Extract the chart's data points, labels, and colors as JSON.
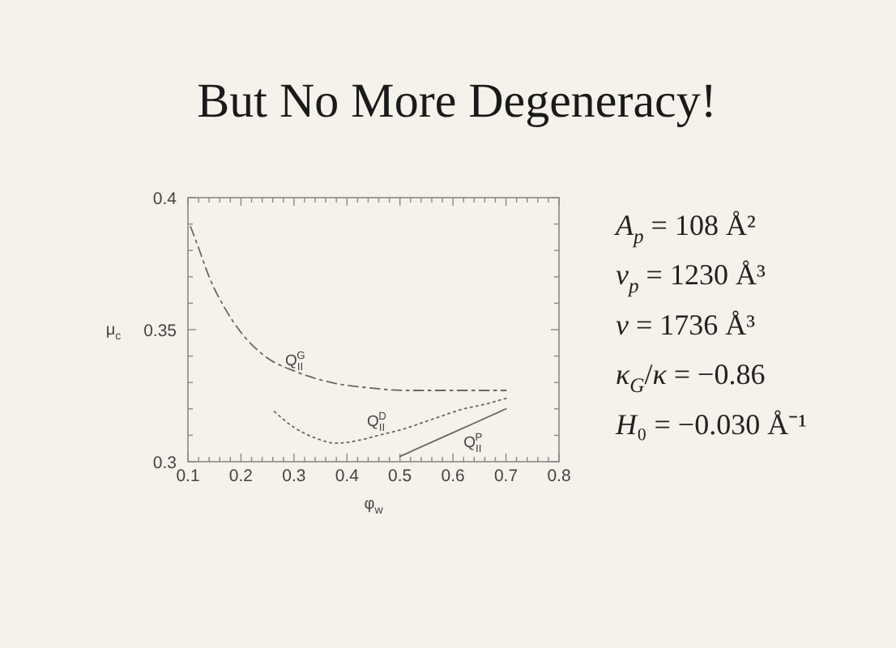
{
  "chart_data": {
    "type": "line",
    "title": "But No More Degeneracy!",
    "xlabel": "φ$_{w}$",
    "ylabel": "μ$_{c}$",
    "xlim": [
      0.1,
      0.8
    ],
    "ylim": [
      0.3,
      0.4
    ],
    "xticks": [
      0.1,
      {
        "value": 0.12,
        "label": null
      },
      {
        "value": 0.14,
        "label": null
      },
      {
        "value": 0.16,
        "label": null
      },
      {
        "value": 0.18,
        "label": null
      },
      0.2,
      {
        "value": 0.22,
        "label": null
      },
      {
        "value": 0.24,
        "label": null
      },
      {
        "value": 0.26,
        "label": null
      },
      {
        "value": 0.28,
        "label": null
      },
      0.3,
      {
        "value": 0.32,
        "label": null
      },
      {
        "value": 0.34,
        "label": null
      },
      {
        "value": 0.36,
        "label": null
      },
      {
        "value": 0.38,
        "label": null
      },
      0.4,
      {
        "value": 0.42,
        "label": null
      },
      {
        "value": 0.44,
        "label": null
      },
      {
        "value": 0.46,
        "label": null
      },
      {
        "value": 0.48,
        "label": null
      },
      0.5,
      {
        "value": 0.52,
        "label": null
      },
      {
        "value": 0.54,
        "label": null
      },
      {
        "value": 0.56,
        "label": null
      },
      {
        "value": 0.58,
        "label": null
      },
      0.6,
      {
        "value": 0.62,
        "label": null
      },
      {
        "value": 0.64,
        "label": null
      },
      {
        "value": 0.66,
        "label": null
      },
      {
        "value": 0.68,
        "label": null
      },
      0.7,
      {
        "value": 0.72,
        "label": null
      },
      {
        "value": 0.74,
        "label": null
      },
      {
        "value": 0.76,
        "label": null
      },
      {
        "value": 0.78,
        "label": null
      },
      0.8
    ],
    "yticks": [
      0.3,
      {
        "value": 0.31,
        "label": null
      },
      {
        "value": 0.32,
        "label": null
      },
      {
        "value": 0.33,
        "label": null
      },
      {
        "value": 0.34,
        "label": null
      },
      0.35,
      {
        "value": 0.36,
        "label": null
      },
      {
        "value": 0.37,
        "label": null
      },
      {
        "value": 0.38,
        "label": null
      },
      {
        "value": 0.39,
        "label": null
      },
      0.4
    ],
    "series": [
      {
        "name": "Q$_{II}$$^{G}$",
        "color": "#666666",
        "line_style": "dashed",
        "x": [
          0.105,
          0.12,
          0.14,
          0.17,
          0.2,
          0.245,
          0.305,
          0.37,
          0.44,
          0.51,
          0.6,
          0.66,
          0.7
        ],
        "values": [
          0.389,
          0.381,
          0.37,
          0.358,
          0.349,
          0.34,
          0.334,
          0.33,
          0.328,
          0.327,
          0.327,
          0.327,
          0.327
        ]
      },
      {
        "name": "Q$_{II}$$^{D}$",
        "color": "#666666",
        "line_style": "dotted",
        "x": [
          0.263,
          0.3,
          0.34,
          0.38,
          0.42,
          0.46,
          0.5,
          0.56,
          0.62,
          0.665,
          0.7
        ],
        "values": [
          0.319,
          0.313,
          0.309,
          0.307,
          0.308,
          0.31,
          0.312,
          0.316,
          0.32,
          0.322,
          0.324
        ]
      },
      {
        "name": "Q$_{II}$$^{P}$",
        "color": "#666666",
        "line_style": "solid",
        "x": [
          0.5,
          0.6,
          0.7
        ],
        "values": [
          0.302,
          0.311,
          0.32
        ]
      }
    ],
    "annotations": [
      "A$_{p}$ = 108 Å²",
      "v$_{p}$ = 1230 Å³",
      "v = 1736 Å³",
      "κ$_{G}$/κ = −0.86",
      "H₀ = −0.030 Å⁻¹"
    ]
  }
}
